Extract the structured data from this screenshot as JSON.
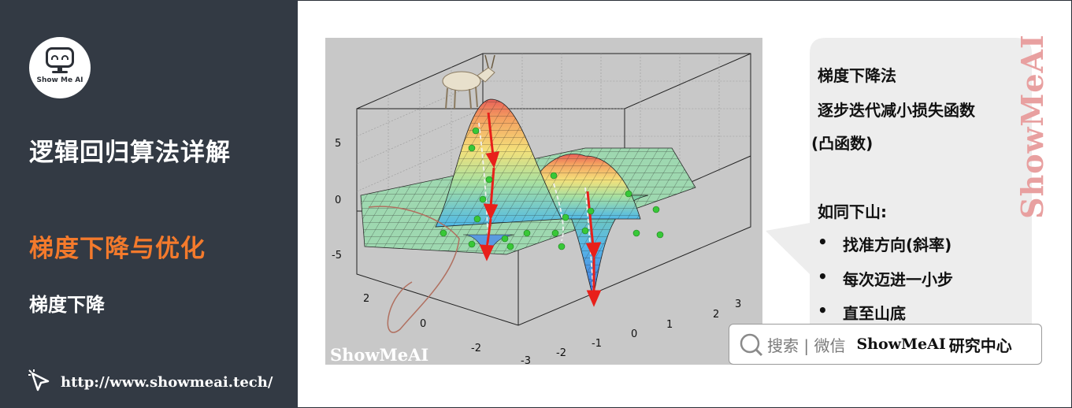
{
  "sidebar": {
    "logo_text": "Show Me AI",
    "title": "逻辑回归算法详解",
    "section": "梯度下降与优化",
    "subsection": "梯度下降",
    "url": "http://www.showmeai.tech/"
  },
  "plot": {
    "watermark": "ShowMeAI",
    "z_ticks": [
      "5",
      "0",
      "-5"
    ],
    "x_ticks": [
      "2",
      "0",
      "-2"
    ],
    "y_ticks": [
      "3",
      "2",
      "1",
      "0",
      "-1",
      "-2",
      "-3"
    ]
  },
  "bubble": {
    "line1": "梯度下降法",
    "line2": "逐步迭代减小损失函数",
    "line3": "(凸函数)",
    "line4": "如同下山:",
    "bullets": [
      "找准方向(斜率)",
      "每次迈进一小步",
      "直至山底"
    ],
    "bullet_char": "•"
  },
  "vertical_watermark": "ShowMeAI",
  "search": {
    "label": "搜索 | 微信",
    "brand": "ShowMeAI",
    "brand_suffix": "研究中心"
  },
  "colors": {
    "sidebar_bg": "#333a44",
    "accent": "#f47a2c",
    "arrow": "#e8201a",
    "point": "#38c838"
  }
}
